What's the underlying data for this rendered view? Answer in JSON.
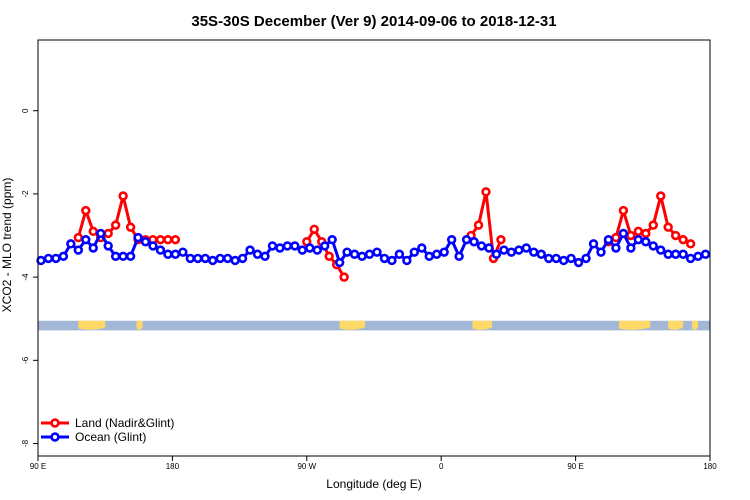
{
  "chart_data": {
    "type": "line",
    "title": "35S-30S December (Ver 9)   2014-09-06 to 2018-12-31",
    "xlabel": "Longitude (deg E)",
    "ylabel": "XCO2 - MLO trend (ppm)",
    "x_unwrapped_range": [
      90,
      540
    ],
    "ylim": [
      -8.3,
      1.7
    ],
    "x_ticks": [
      {
        "value": 90,
        "label": "90 E"
      },
      {
        "value": 180,
        "label": "180"
      },
      {
        "value": 270,
        "label": "90 W"
      },
      {
        "value": 360,
        "label": "0"
      },
      {
        "value": 450,
        "label": "90 E"
      },
      {
        "value": 540,
        "label": "180"
      }
    ],
    "y_ticks": [
      {
        "value": 0,
        "label": "0"
      },
      {
        "value": -2,
        "label": "-2"
      },
      {
        "value": -4,
        "label": "-4"
      },
      {
        "value": -6,
        "label": "-6"
      },
      {
        "value": -8,
        "label": "-8"
      }
    ],
    "legend": {
      "position": "bottom-left",
      "entries": [
        {
          "name": "Land (Nadir&Glint)",
          "color": "#ff0000"
        },
        {
          "name": "Ocean (Glint)",
          "color": "#0000ff"
        }
      ]
    },
    "map_strip": {
      "y_range": [
        -5.05,
        -5.28
      ],
      "ocean_color": "#a3b8d6",
      "land_color": "#ffd966",
      "land_spans": [
        [
          117,
          135
        ],
        [
          156,
          160
        ],
        [
          292,
          309
        ],
        [
          381,
          394
        ],
        [
          479,
          500
        ],
        [
          512,
          522
        ],
        [
          528,
          532
        ]
      ]
    },
    "series": [
      {
        "name": "Land (Nadir&Glint)",
        "color": "#ff0000",
        "segments": [
          {
            "x": [
              117,
              122,
              127,
              132,
              137,
              142,
              147,
              152,
              157,
              162,
              167,
              172,
              177,
              182
            ],
            "y": [
              -3.05,
              -2.4,
              -2.9,
              -3.05,
              -2.95,
              -2.75,
              -2.05,
              -2.8,
              -3.1,
              -3.1,
              -3.1,
              -3.1,
              -3.1,
              -3.1
            ]
          },
          {
            "x": [
              270,
              275,
              280,
              285,
              290,
              295
            ],
            "y": [
              -3.15,
              -2.85,
              -3.15,
              -3.5,
              -3.7,
              -4.0
            ]
          },
          {
            "x": [
              380,
              385,
              390,
              395,
              400
            ],
            "y": [
              -3.0,
              -2.75,
              -1.95,
              -3.55,
              -3.1
            ]
          },
          {
            "x": [
              472,
              477,
              482,
              487,
              492,
              497,
              502,
              507,
              512,
              517,
              522,
              527
            ],
            "y": [
              -3.15,
              -3.05,
              -2.4,
              -3.0,
              -2.9,
              -2.95,
              -2.75,
              -2.05,
              -2.8,
              -3.0,
              -3.1,
              -3.2
            ]
          }
        ]
      },
      {
        "name": "Ocean (Glint)",
        "color": "#0000ff",
        "x": [
          92,
          97,
          102,
          107,
          112,
          117,
          122,
          127,
          132,
          137,
          142,
          147,
          152,
          157,
          162,
          167,
          172,
          177,
          182,
          187,
          192,
          197,
          202,
          207,
          212,
          217,
          222,
          227,
          232,
          237,
          242,
          247,
          252,
          257,
          262,
          267,
          272,
          277,
          282,
          287,
          292,
          297,
          302,
          307,
          312,
          317,
          322,
          327,
          332,
          337,
          342,
          347,
          352,
          357,
          362,
          367,
          372,
          377,
          382,
          387,
          392,
          397,
          402,
          407,
          412,
          417,
          422,
          427,
          432,
          437,
          442,
          447,
          452,
          457,
          462,
          467,
          472,
          477,
          482,
          487,
          492,
          497,
          502,
          507,
          512,
          517,
          522,
          527,
          532,
          537
        ],
        "y": [
          -3.6,
          -3.55,
          -3.55,
          -3.5,
          -3.2,
          -3.35,
          -3.1,
          -3.3,
          -2.95,
          -3.25,
          -3.5,
          -3.5,
          -3.5,
          -3.05,
          -3.15,
          -3.25,
          -3.35,
          -3.45,
          -3.45,
          -3.4,
          -3.55,
          -3.55,
          -3.55,
          -3.6,
          -3.55,
          -3.55,
          -3.6,
          -3.55,
          -3.35,
          -3.45,
          -3.5,
          -3.25,
          -3.3,
          -3.25,
          -3.25,
          -3.35,
          -3.3,
          -3.35,
          -3.25,
          -3.1,
          -3.65,
          -3.4,
          -3.45,
          -3.5,
          -3.45,
          -3.4,
          -3.55,
          -3.6,
          -3.45,
          -3.6,
          -3.4,
          -3.3,
          -3.5,
          -3.45,
          -3.4,
          -3.1,
          -3.5,
          -3.1,
          -3.15,
          -3.25,
          -3.3,
          -3.45,
          -3.35,
          -3.4,
          -3.35,
          -3.3,
          -3.4,
          -3.45,
          -3.55,
          -3.55,
          -3.6,
          -3.55,
          -3.65,
          -3.55,
          -3.2,
          -3.4,
          -3.1,
          -3.3,
          -2.95,
          -3.3,
          -3.1,
          -3.15,
          -3.25,
          -3.35,
          -3.45,
          -3.45,
          -3.45,
          -3.55,
          -3.5,
          -3.45
        ]
      }
    ]
  }
}
